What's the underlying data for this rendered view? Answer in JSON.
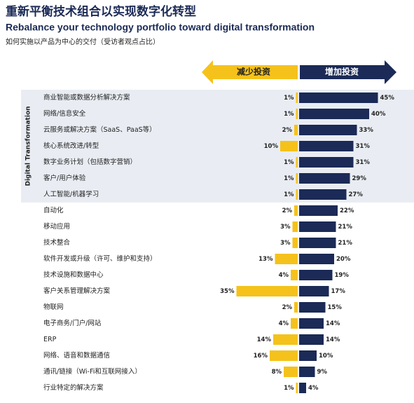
{
  "chart_data": {
    "type": "bar",
    "title": "重新平衡技术组合以实现数字化转型",
    "subtitle": "Rebalance your technology portfolio toward digital transformation",
    "note": "如何实施以产品为中心的交付（受访者观点占比）",
    "categories": [
      "商业智能或数据分析解决方案",
      "网络/信息安全",
      "云服务或解决方案（SaaS、PaaS等）",
      "核心系统改进/转型",
      "数字业务计划（包括数字营销）",
      "客户/用户体验",
      "人工智能/机器学习",
      "自动化",
      "移动应用",
      "技术整合",
      "软件开发或升级（许可、维护和支持）",
      "技术设施和数据中心",
      "客户关系管理解决方案",
      "物联网",
      "电子商务/门户/网站",
      "ERP",
      "网络、语音和数据通信",
      "通讯/链接（Wi-Fi和互联网接入）",
      "行业特定的解决方案"
    ],
    "series": [
      {
        "name": "减少投资",
        "color": "#f5c21b",
        "direction": "left",
        "values": [
          1,
          1,
          2,
          10,
          1,
          1,
          1,
          2,
          3,
          3,
          13,
          4,
          35,
          2,
          4,
          14,
          16,
          8,
          1
        ],
        "value_labels": [
          "1%",
          "1%",
          "2%",
          "10%",
          "1%",
          "1%",
          "1%",
          "2%",
          "3%",
          "3%",
          "13%",
          "4%",
          "35%",
          "2%",
          "4%",
          "14%",
          "16%",
          "8%",
          "1%"
        ]
      },
      {
        "name": "增加投资",
        "color": "#1b2a56",
        "direction": "right",
        "values": [
          45,
          40,
          33,
          31,
          31,
          29,
          27,
          22,
          21,
          21,
          20,
          19,
          17,
          15,
          14,
          14,
          10,
          9,
          4
        ],
        "value_labels": [
          "45%",
          "40%",
          "33%",
          "31%",
          "31%",
          "29%",
          "27%",
          "22%",
          "21%",
          "21%",
          "20%",
          "19%",
          "17%",
          "15%",
          "14%",
          "14%",
          "10%",
          "9%",
          "4%"
        ]
      }
    ],
    "highlight_group": {
      "label": "Digital Transformation",
      "size": 7
    }
  }
}
